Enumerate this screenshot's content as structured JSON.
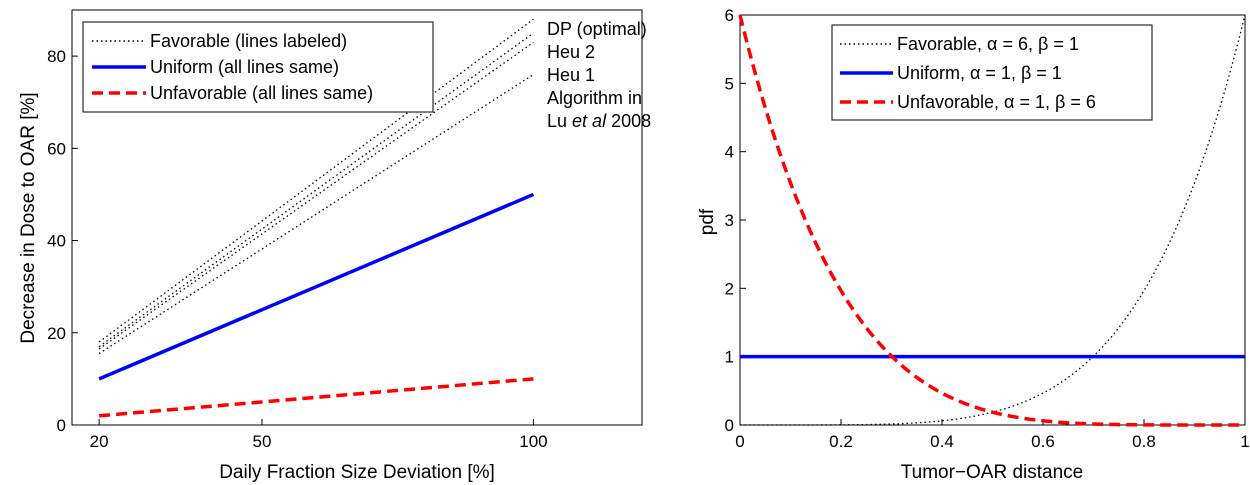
{
  "chart_data": [
    {
      "type": "line",
      "xlabel": "Daily Fraction Size Deviation [%]",
      "ylabel": "Decrease in Dose to OAR [%]",
      "xlim": [
        15,
        120
      ],
      "ylim": [
        0,
        90
      ],
      "xticks": [
        20,
        50,
        100
      ],
      "yticks": [
        0,
        20,
        40,
        60,
        80
      ],
      "legend_position": "top-left",
      "legend": [
        {
          "label": "Favorable (lines labeled)",
          "style": "dotted",
          "color": "#000000"
        },
        {
          "label": "Uniform (all lines same)",
          "style": "solid",
          "color": "#0000ff"
        },
        {
          "label": "Unfavorable (all lines same)",
          "style": "dashed",
          "color": "#ff0000"
        }
      ],
      "annotations": [
        "DP (optimal)",
        "Heu 2",
        "Heu 1",
        "Algorithm in",
        "Lu",
        "et al",
        "2008"
      ],
      "series": [
        {
          "name": "DP (optimal)",
          "group": "Favorable",
          "style": "dotted",
          "color": "#000000",
          "x": [
            20,
            100
          ],
          "y": [
            18,
            88
          ]
        },
        {
          "name": "Heu 2",
          "group": "Favorable",
          "style": "dotted",
          "color": "#000000",
          "x": [
            20,
            100
          ],
          "y": [
            17,
            85
          ]
        },
        {
          "name": "Heu 1",
          "group": "Favorable",
          "style": "dotted",
          "color": "#000000",
          "x": [
            20,
            100
          ],
          "y": [
            16.5,
            83
          ]
        },
        {
          "name": "Algorithm in Lu et al 2008",
          "group": "Favorable",
          "style": "dotted",
          "color": "#000000",
          "x": [
            20,
            100
          ],
          "y": [
            15.5,
            76
          ]
        },
        {
          "group": "Uniform",
          "style": "solid",
          "color": "#0000ff",
          "x": [
            20,
            100
          ],
          "y": [
            10,
            50
          ]
        },
        {
          "group": "Unfavorable",
          "style": "dashed",
          "color": "#ff0000",
          "x": [
            20,
            100
          ],
          "y": [
            2,
            10
          ]
        }
      ]
    },
    {
      "type": "line",
      "xlabel": "Tumor−OAR distance",
      "ylabel": "pdf",
      "xlim": [
        0,
        1
      ],
      "ylim": [
        0,
        6
      ],
      "xticks": [
        0,
        0.2,
        0.4,
        0.6,
        0.8,
        1
      ],
      "xtick_labels": [
        "0",
        "0.2",
        "0.4",
        "0.6",
        "0.8",
        "1"
      ],
      "yticks": [
        0,
        1,
        2,
        3,
        4,
        5,
        6
      ],
      "legend_position": "top-right",
      "legend": [
        {
          "label": "Favorable, α = 6, β = 1",
          "style": "dotted",
          "color": "#000000"
        },
        {
          "label": "Uniform, α = 1, β = 1",
          "style": "solid",
          "color": "#0000ff"
        },
        {
          "label": "Unfavorable, α = 1, β = 6",
          "style": "dashed",
          "color": "#ff0000"
        }
      ],
      "series": [
        {
          "name": "Favorable, α = 6, β = 1",
          "style": "dotted",
          "color": "#000000",
          "function": "6*x^5",
          "x": [
            0,
            0.2,
            0.4,
            0.5,
            0.6,
            0.7,
            0.8,
            0.9,
            1.0
          ],
          "y": [
            0,
            0.002,
            0.061,
            0.188,
            0.467,
            1.008,
            1.966,
            3.543,
            6.0
          ]
        },
        {
          "name": "Uniform, α = 1, β = 1",
          "style": "solid",
          "color": "#0000ff",
          "function": "1",
          "x": [
            0,
            1
          ],
          "y": [
            1,
            1
          ]
        },
        {
          "name": "Unfavorable, α = 1, β = 6",
          "style": "dashed",
          "color": "#ff0000",
          "function": "6*(1-x)^5",
          "x": [
            0,
            0.1,
            0.2,
            0.3,
            0.4,
            0.5,
            0.6,
            0.8,
            1.0
          ],
          "y": [
            6.0,
            3.543,
            1.966,
            1.008,
            0.467,
            0.188,
            0.061,
            0.002,
            0
          ]
        }
      ]
    }
  ]
}
